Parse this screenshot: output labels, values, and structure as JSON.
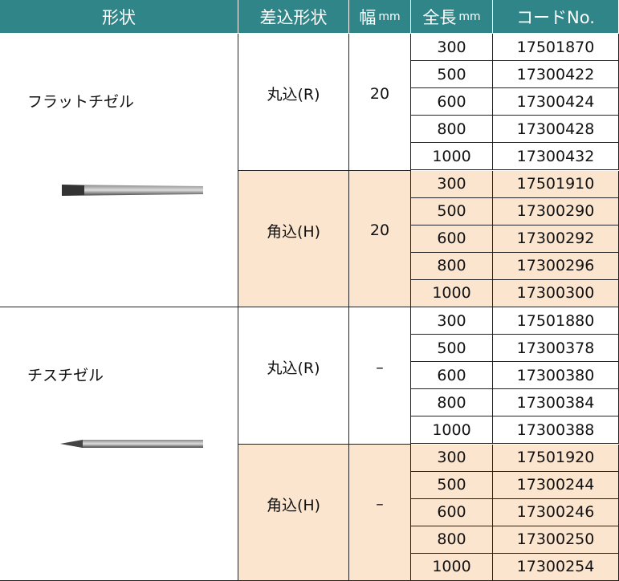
{
  "header": [
    {
      "label": "形状"
    },
    {
      "label": "差込形状"
    },
    {
      "label": "幅",
      "unit": "mm"
    },
    {
      "label": "全長",
      "unit": "mm"
    },
    {
      "label": "コードNo."
    }
  ],
  "groups": [
    {
      "shape": "フラットチゼル",
      "subgroups": [
        {
          "insert": "丸込(R)",
          "width": "20",
          "rows": [
            [
              "300",
              "17501870"
            ],
            [
              "500",
              "17300422"
            ],
            [
              "600",
              "17300424"
            ],
            [
              "800",
              "17300428"
            ],
            [
              "1000",
              "17300432"
            ]
          ]
        },
        {
          "insert": "角込(H)",
          "width": "20",
          "rows": [
            [
              "300",
              "17501910"
            ],
            [
              "500",
              "17300290"
            ],
            [
              "600",
              "17300292"
            ],
            [
              "800",
              "17300296"
            ],
            [
              "1000",
              "17300300"
            ]
          ]
        }
      ]
    },
    {
      "shape": "チスチゼル",
      "subgroups": [
        {
          "insert": "丸込(R)",
          "width": "–",
          "rows": [
            [
              "300",
              "17501880"
            ],
            [
              "500",
              "17300378"
            ],
            [
              "600",
              "17300380"
            ],
            [
              "800",
              "17300384"
            ],
            [
              "1000",
              "17300388"
            ]
          ]
        },
        {
          "insert": "角込(H)",
          "width": "–",
          "rows": [
            [
              "300",
              "17501920"
            ],
            [
              "500",
              "17300244"
            ],
            [
              "600",
              "17300246"
            ],
            [
              "800",
              "17300250"
            ],
            [
              "1000",
              "17300254"
            ]
          ]
        }
      ]
    }
  ]
}
